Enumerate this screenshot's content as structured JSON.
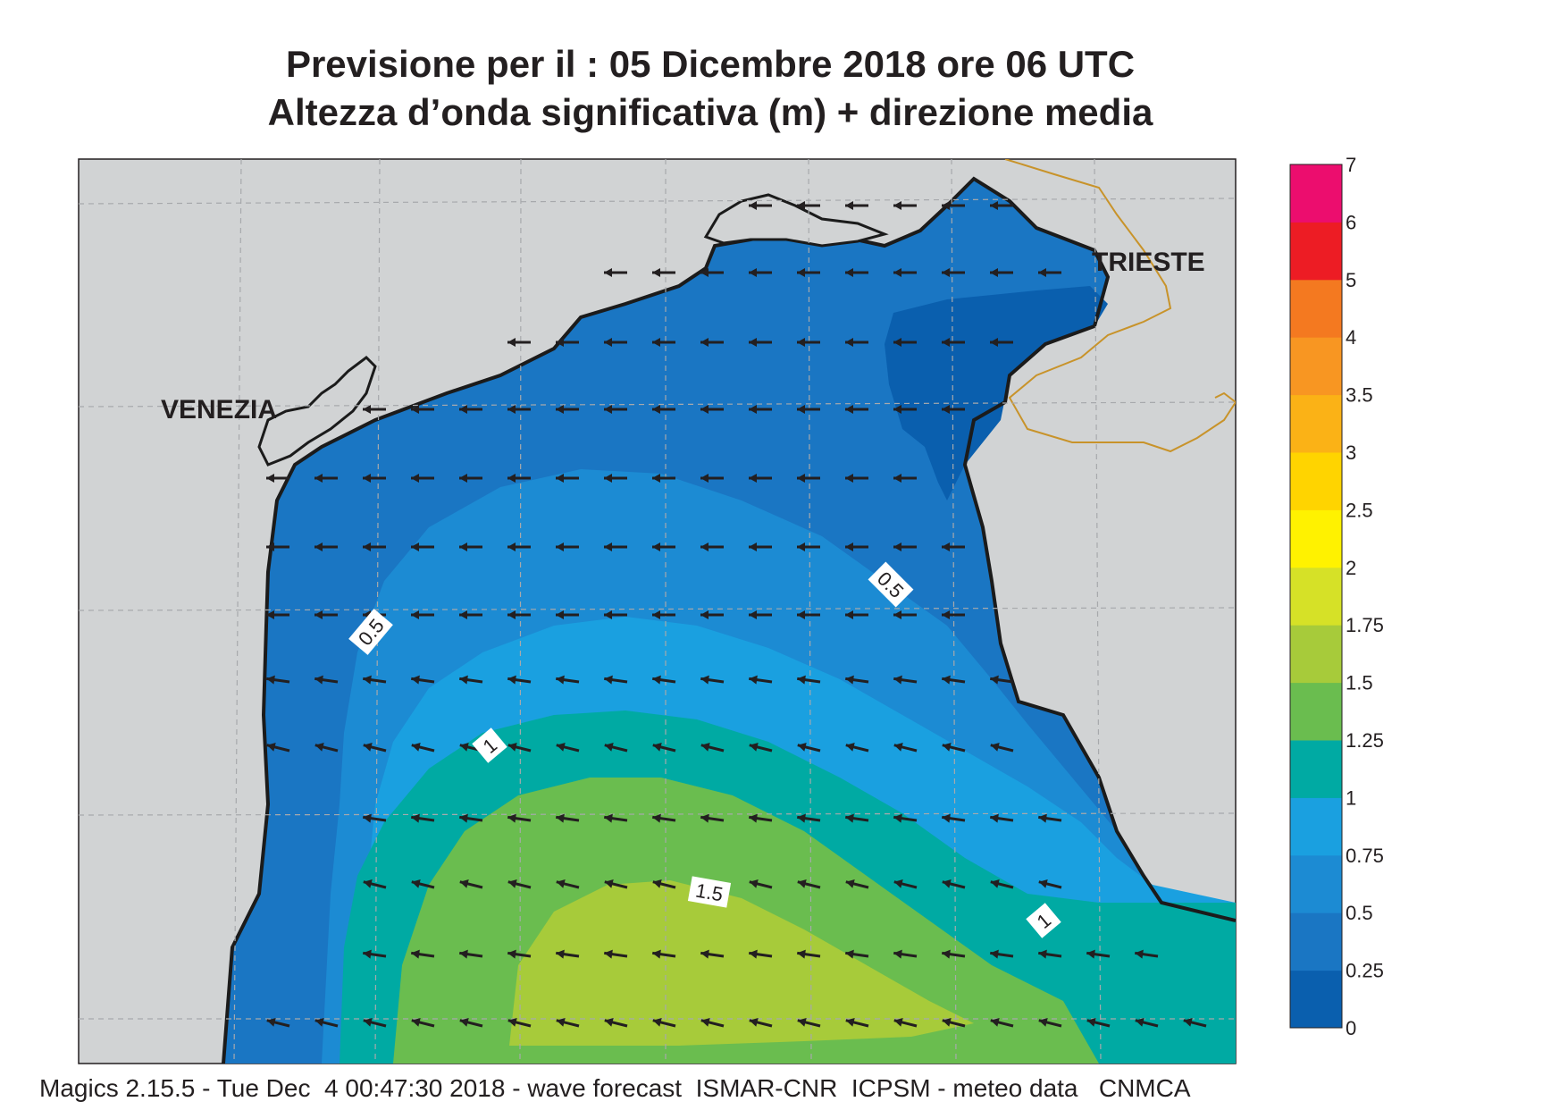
{
  "title": {
    "line1": "Previsione per il  :  05 Dicembre  2018   ore 06 UTC",
    "line2": "Altezza d’onda significativa (m) + direzione media"
  },
  "footer": "Magics 2.15.5 - Tue Dec  4 00:47:30 2018 - wave forecast  ISMAR-CNR  ICPSM - meteo data   CNMCA",
  "cities": [
    {
      "name": "VENEZIA"
    },
    {
      "name": "TRIESTE"
    }
  ],
  "contour_labels": [
    "0.5",
    "0.5",
    "1",
    "1",
    "1.5"
  ],
  "legend": {
    "levels": [
      "0",
      "0.25",
      "0.5",
      "0.75",
      "1",
      "1.25",
      "1.5",
      "1.75",
      "2",
      "2.5",
      "3",
      "3.5",
      "4",
      "5",
      "6",
      "7"
    ],
    "colors": [
      "#0a5fae",
      "#1a76c3",
      "#1c8bd3",
      "#1aa0e0",
      "#00aaa3",
      "#6abd4f",
      "#a7cb3a",
      "#d6e127",
      "#fff200",
      "#ffd400",
      "#fbb216",
      "#f89622",
      "#f47920",
      "#ed1c24",
      "#ec0d6e"
    ]
  },
  "colors": {
    "land": "#d1d3d4",
    "coast": "#1b1b1b",
    "border": "#c8932a",
    "grid": "#a7a9ac",
    "arrow": "#231f20"
  },
  "wave_direction": "westward"
}
